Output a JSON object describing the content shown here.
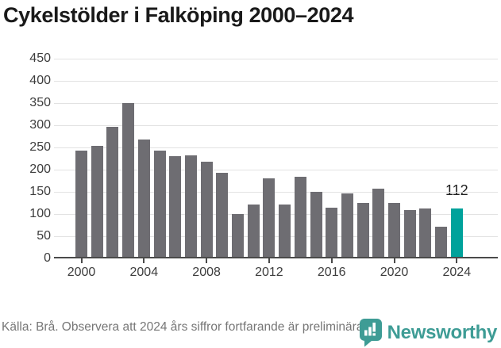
{
  "title": "Cykelstölder i Falköping 2000–2024",
  "chart_data": {
    "type": "bar",
    "title": "Cykelstölder i Falköping 2000–2024",
    "x": [
      2000,
      2001,
      2002,
      2003,
      2004,
      2005,
      2006,
      2007,
      2008,
      2009,
      2010,
      2011,
      2012,
      2013,
      2014,
      2015,
      2016,
      2017,
      2018,
      2019,
      2020,
      2021,
      2022,
      2023,
      2024
    ],
    "values": [
      243,
      254,
      296,
      350,
      268,
      244,
      231,
      232,
      219,
      193,
      101,
      122,
      181,
      122,
      184,
      150,
      114,
      147,
      125,
      158,
      125,
      110,
      112,
      71,
      112
    ],
    "ylim": [
      0,
      450
    ],
    "y_ticks": [
      0,
      50,
      100,
      150,
      200,
      250,
      300,
      350,
      400,
      450
    ],
    "x_tick_years": [
      2000,
      2004,
      2008,
      2012,
      2016,
      2020,
      2024
    ],
    "grid": true,
    "legend": "none",
    "bar_color": "#6e6d72",
    "highlight_year": 2024,
    "highlight_color": "#00a29b",
    "highlight_label": "112"
  },
  "footer": {
    "source_text": "Källa: Brå. Observera att 2024 års siffror fortfarande är preliminära."
  },
  "logo": {
    "text": "Newsworthy",
    "color": "#3e9c95",
    "icon": "newsworthy-bar-chart-speech-bubble"
  }
}
